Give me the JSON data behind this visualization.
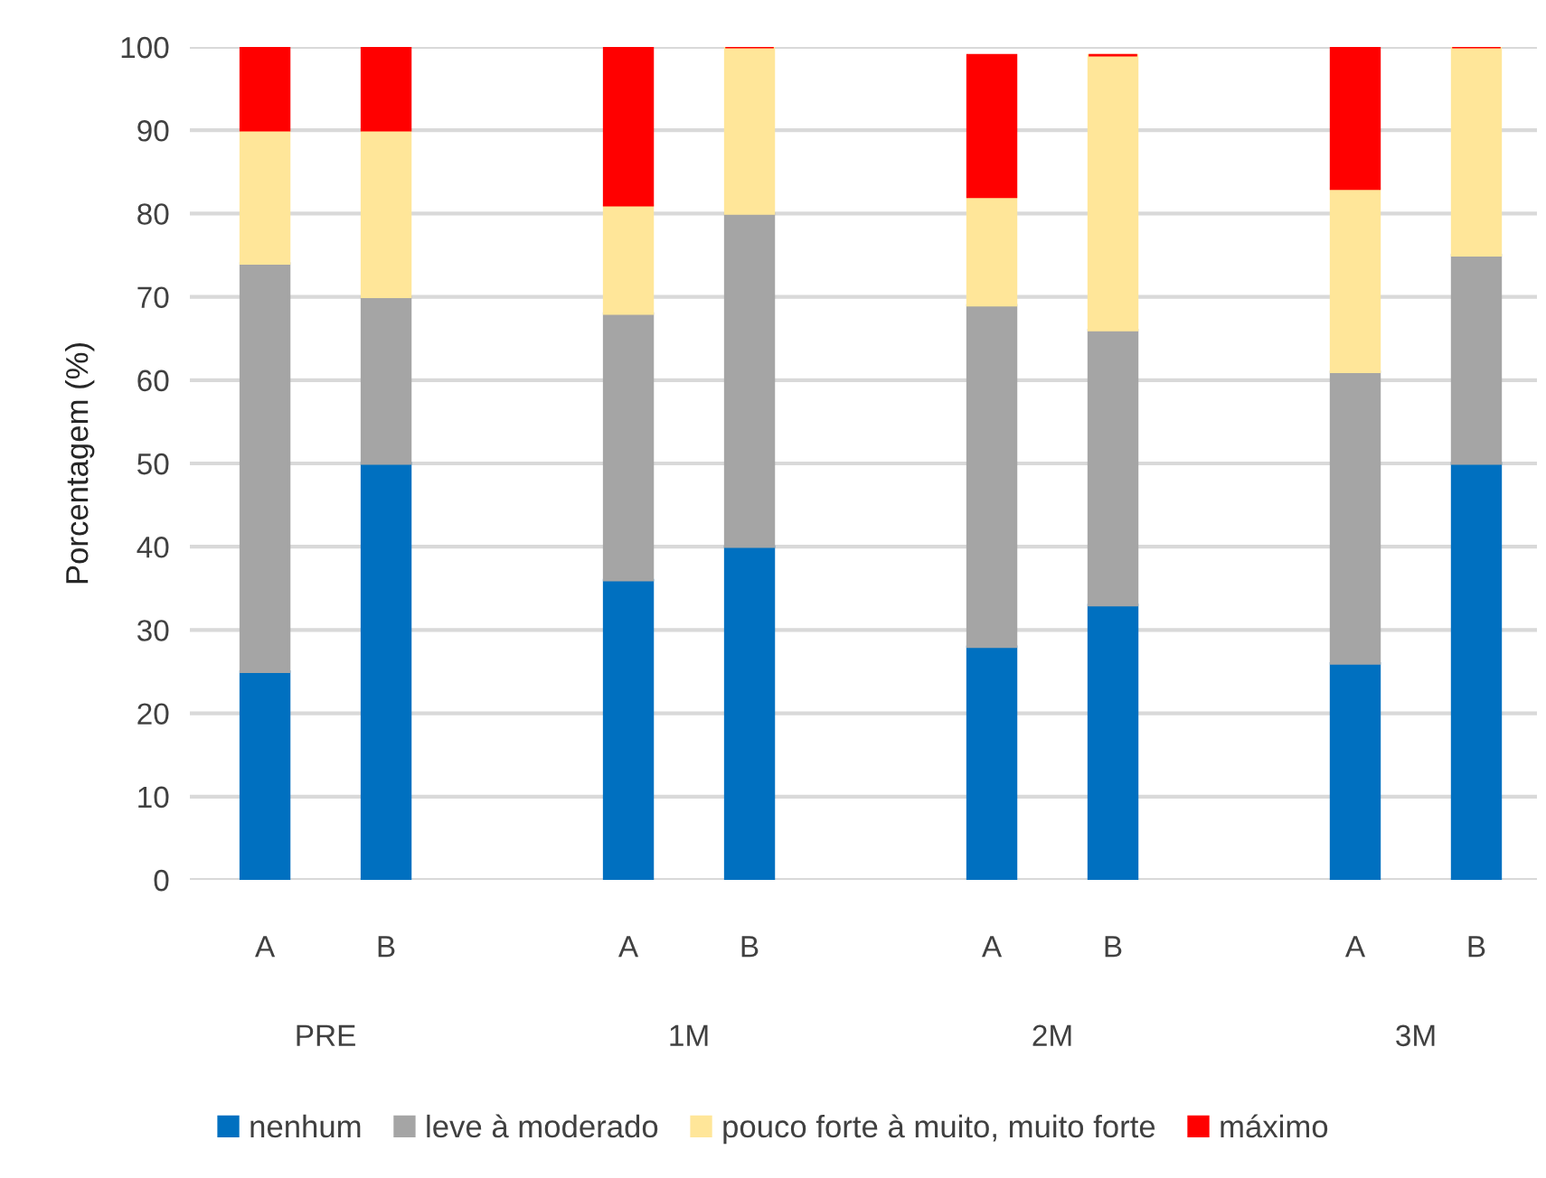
{
  "chart_data": {
    "type": "bar",
    "stacked": true,
    "ylabel": "Porcentagem (%)",
    "categories": [
      "A",
      "B",
      null,
      "A",
      "B",
      null,
      "A",
      "B",
      null,
      "A",
      "B"
    ],
    "annotations": [
      "PRE",
      "1M",
      "2M",
      "3M"
    ],
    "series": [
      {
        "name": "nenhum",
        "color": "#0070c0",
        "values": [
          25,
          50,
          null,
          36,
          40,
          null,
          28,
          33,
          null,
          26,
          50
        ]
      },
      {
        "name": "leve à moderado",
        "color": "#a5a5a5",
        "values": [
          49,
          20,
          null,
          32,
          40,
          null,
          41,
          33,
          null,
          35,
          25
        ]
      },
      {
        "name": "pouco forte à muito, muito forte",
        "color": "#ffe699",
        "values": [
          16,
          20,
          null,
          13,
          20,
          null,
          13,
          33,
          null,
          22,
          25
        ]
      },
      {
        "name": "máximo",
        "color": "#ff0000",
        "values": [
          10,
          10,
          null,
          19,
          0,
          null,
          17,
          0,
          null,
          17,
          0
        ]
      }
    ],
    "ylim": [
      0,
      100
    ],
    "yticks": [
      0,
      10,
      20,
      30,
      40,
      50,
      60,
      70,
      80,
      90,
      100
    ],
    "grid": "y",
    "legend": "bottom"
  }
}
